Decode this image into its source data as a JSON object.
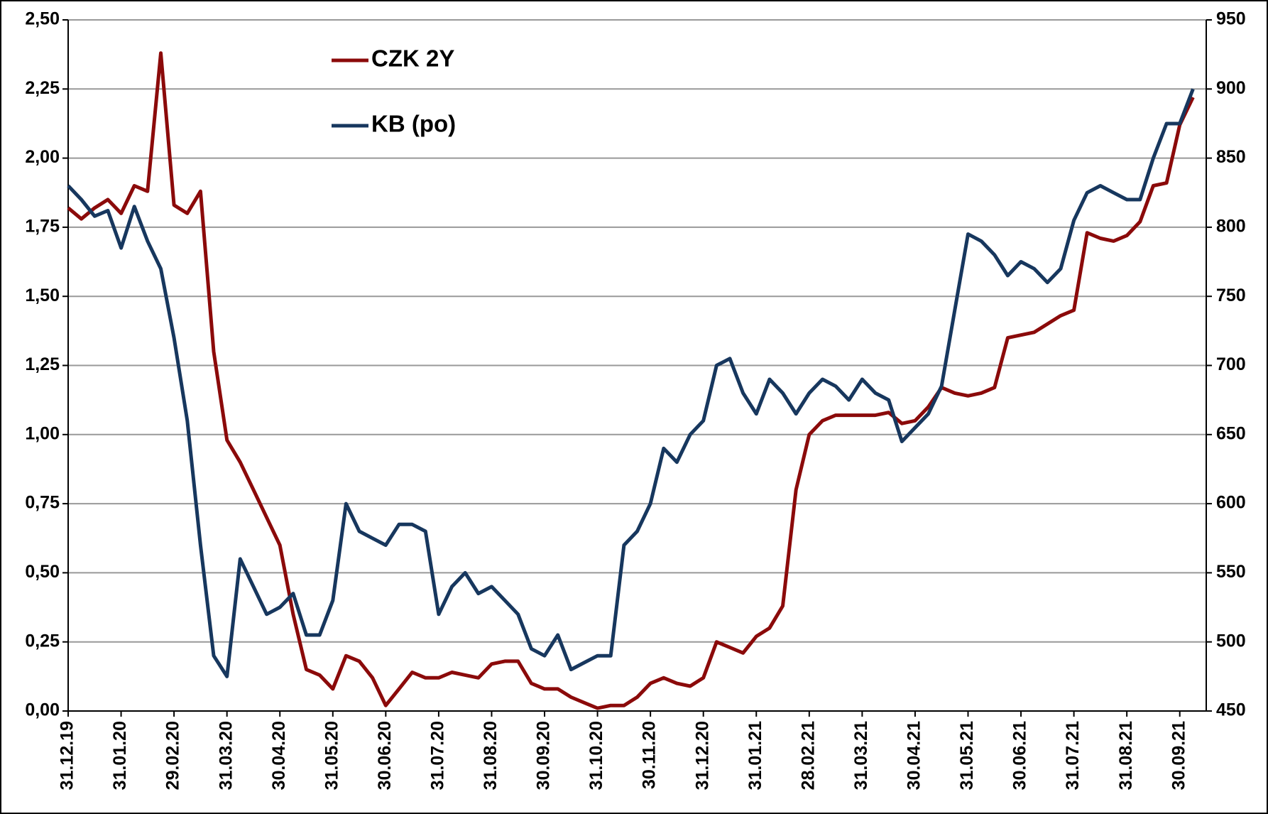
{
  "chart_data": {
    "type": "line",
    "categories": [
      "31.12.19",
      null,
      null,
      null,
      "31.01.20",
      null,
      null,
      null,
      "29.02.20",
      null,
      null,
      null,
      "31.03.20",
      null,
      null,
      null,
      "30.04.20",
      null,
      null,
      null,
      "31.05.20",
      null,
      null,
      null,
      "30.06.20",
      null,
      null,
      null,
      "31.07.20",
      null,
      null,
      null,
      "31.08.20",
      null,
      null,
      null,
      "30.09.20",
      null,
      null,
      null,
      "31.10.20",
      null,
      null,
      null,
      "30.11.20",
      null,
      null,
      null,
      "31.12.20",
      null,
      null,
      null,
      "31.01.21",
      null,
      null,
      null,
      "28.02.21",
      null,
      null,
      null,
      "31.03.21",
      null,
      null,
      null,
      "30.04.21",
      null,
      null,
      null,
      "31.05.21",
      null,
      null,
      null,
      "30.06.21",
      null,
      null,
      null,
      "31.07.21",
      null,
      null,
      null,
      "31.08.21",
      null,
      null,
      null,
      "30.09.21",
      null
    ],
    "series": [
      {
        "name": "CZK 2Y",
        "color": "#8B0A0A",
        "axis": "y",
        "values": [
          1.82,
          1.78,
          1.82,
          1.85,
          1.8,
          1.9,
          1.88,
          2.38,
          1.83,
          1.8,
          1.88,
          1.3,
          0.98,
          0.9,
          0.8,
          0.7,
          0.6,
          0.35,
          0.15,
          0.13,
          0.08,
          0.2,
          0.18,
          0.12,
          0.02,
          0.08,
          0.14,
          0.12,
          0.12,
          0.14,
          0.13,
          0.12,
          0.17,
          0.18,
          0.18,
          0.1,
          0.08,
          0.08,
          0.05,
          0.03,
          0.01,
          0.02,
          0.02,
          0.05,
          0.1,
          0.12,
          0.1,
          0.09,
          0.12,
          0.25,
          0.23,
          0.21,
          0.27,
          0.3,
          0.38,
          0.8,
          1.0,
          1.05,
          1.07,
          1.07,
          1.07,
          1.07,
          1.08,
          1.04,
          1.05,
          1.1,
          1.17,
          1.15,
          1.14,
          1.15,
          1.17,
          1.35,
          1.36,
          1.37,
          1.4,
          1.43,
          1.45,
          1.73,
          1.71,
          1.7,
          1.72,
          1.77,
          1.9,
          1.91,
          2.12,
          2.22
        ]
      },
      {
        "name": "KB (po)",
        "color": "#17375E",
        "axis": "y2",
        "values": [
          830,
          820,
          808,
          812,
          785,
          815,
          790,
          770,
          720,
          660,
          570,
          490,
          475,
          560,
          540,
          520,
          525,
          535,
          505,
          505,
          530,
          600,
          580,
          575,
          570,
          585,
          585,
          580,
          520,
          540,
          550,
          535,
          540,
          530,
          520,
          495,
          490,
          505,
          480,
          485,
          490,
          490,
          570,
          580,
          600,
          640,
          630,
          650,
          660,
          700,
          705,
          680,
          665,
          690,
          680,
          665,
          680,
          690,
          685,
          675,
          690,
          680,
          675,
          645,
          655,
          665,
          685,
          740,
          795,
          790,
          780,
          765,
          775,
          770,
          760,
          770,
          805,
          825,
          830,
          825,
          820,
          820,
          850,
          875,
          875,
          900
        ]
      }
    ],
    "ylim": [
      0,
      2.5
    ],
    "yticks": [
      {
        "value": 0,
        "label": "0,00"
      },
      {
        "value": 0.25,
        "label": "0,25"
      },
      {
        "value": 0.5,
        "label": "0,50"
      },
      {
        "value": 0.75,
        "label": "0,75"
      },
      {
        "value": 1,
        "label": "1,00"
      },
      {
        "value": 1.25,
        "label": "1,25"
      },
      {
        "value": 1.5,
        "label": "1,50"
      },
      {
        "value": 1.75,
        "label": "1,75"
      },
      {
        "value": 2,
        "label": "2,00"
      },
      {
        "value": 2.25,
        "label": "2,25"
      },
      {
        "value": 2.5,
        "label": "2,50"
      }
    ],
    "y2lim": [
      450,
      950
    ],
    "y2ticks": [
      450,
      500,
      550,
      600,
      650,
      700,
      750,
      800,
      850,
      900,
      950
    ],
    "grid": true,
    "legend": "top-left"
  }
}
